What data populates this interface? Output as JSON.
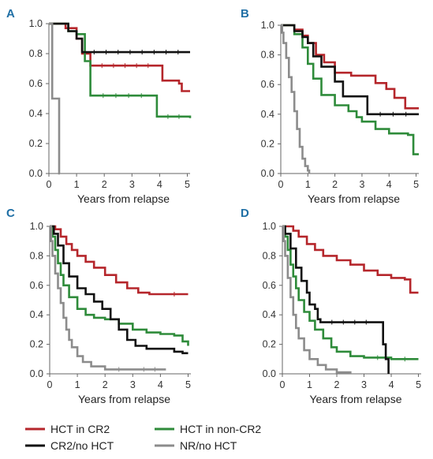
{
  "legend": [
    {
      "label": "HCT in CR2",
      "color": "#b5262b"
    },
    {
      "label": "HCT in non-CR2",
      "color": "#2e8b3a"
    },
    {
      "label": "CR2/no HCT",
      "color": "#111111"
    },
    {
      "label": "NR/no HCT",
      "color": "#8c8c8c"
    }
  ],
  "panel_letter_color": "#1f6fa5",
  "chart_data": [
    {
      "type": "line",
      "panel": "A",
      "xlabel": "Years from relapse",
      "ylabel": "",
      "xlim": [
        0,
        5.1
      ],
      "ylim": [
        0,
        1.0
      ],
      "xticks": [
        "0",
        "1",
        "2",
        "3",
        "4",
        "5"
      ],
      "yticks": [
        "0.0",
        "0.2",
        "0.4",
        "0.6",
        "0.8",
        "1.0"
      ],
      "series": [
        {
          "name": "HCT in CR2",
          "points": [
            [
              0,
              1.0
            ],
            [
              0.5,
              1.0
            ],
            [
              0.6,
              0.97
            ],
            [
              1.0,
              0.9
            ],
            [
              1.2,
              0.8
            ],
            [
              1.5,
              0.72
            ],
            [
              4.0,
              0.72
            ],
            [
              4.1,
              0.62
            ],
            [
              4.7,
              0.6
            ],
            [
              4.8,
              0.55
            ],
            [
              5.1,
              0.55
            ]
          ]
        },
        {
          "name": "HCT in non-CR2",
          "points": [
            [
              0,
              1.0
            ],
            [
              0.6,
              1.0
            ],
            [
              0.7,
              0.95
            ],
            [
              1.0,
              0.93
            ],
            [
              1.3,
              0.75
            ],
            [
              1.5,
              0.52
            ],
            [
              3.8,
              0.52
            ],
            [
              3.9,
              0.38
            ],
            [
              5.1,
              0.37
            ]
          ]
        },
        {
          "name": "CR2/no HCT",
          "points": [
            [
              0,
              1.0
            ],
            [
              0.6,
              1.0
            ],
            [
              0.7,
              0.95
            ],
            [
              1.0,
              0.9
            ],
            [
              1.2,
              0.81
            ],
            [
              5.1,
              0.81
            ]
          ]
        },
        {
          "name": "NR/no HCT",
          "points": [
            [
              0,
              1.0
            ],
            [
              0.1,
              1.0
            ],
            [
              0.12,
              0.5
            ],
            [
              0.35,
              0.5
            ],
            [
              0.37,
              0.0
            ],
            [
              0.4,
              0.0
            ]
          ]
        }
      ]
    },
    {
      "type": "line",
      "panel": "B",
      "xlabel": "Years from relapse",
      "ylabel": "",
      "xlim": [
        0,
        5.1
      ],
      "ylim": [
        0,
        1.0
      ],
      "xticks": [
        "0",
        "1",
        "2",
        "3",
        "4",
        "5"
      ],
      "yticks": [
        "0.0",
        "0.2",
        "0.4",
        "0.6",
        "0.8",
        "1.0"
      ],
      "series": [
        {
          "name": "HCT in CR2",
          "points": [
            [
              0,
              1.0
            ],
            [
              0.4,
              1.0
            ],
            [
              0.5,
              0.97
            ],
            [
              0.8,
              0.93
            ],
            [
              1.0,
              0.88
            ],
            [
              1.3,
              0.8
            ],
            [
              1.6,
              0.75
            ],
            [
              2.0,
              0.68
            ],
            [
              2.4,
              0.68
            ],
            [
              2.6,
              0.66
            ],
            [
              3.2,
              0.66
            ],
            [
              3.5,
              0.61
            ],
            [
              3.9,
              0.57
            ],
            [
              4.2,
              0.51
            ],
            [
              4.6,
              0.44
            ],
            [
              5.1,
              0.44
            ]
          ]
        },
        {
          "name": "HCT in non-CR2",
          "points": [
            [
              0,
              1.0
            ],
            [
              0.3,
              1.0
            ],
            [
              0.5,
              0.94
            ],
            [
              0.8,
              0.85
            ],
            [
              1.0,
              0.74
            ],
            [
              1.2,
              0.64
            ],
            [
              1.5,
              0.53
            ],
            [
              2.0,
              0.46
            ],
            [
              2.5,
              0.42
            ],
            [
              2.8,
              0.38
            ],
            [
              3.0,
              0.35
            ],
            [
              3.5,
              0.3
            ],
            [
              4.0,
              0.27
            ],
            [
              4.7,
              0.26
            ],
            [
              4.9,
              0.13
            ],
            [
              5.1,
              0.13
            ]
          ]
        },
        {
          "name": "CR2/no HCT",
          "points": [
            [
              0,
              1.0
            ],
            [
              0.3,
              1.0
            ],
            [
              0.5,
              0.96
            ],
            [
              0.8,
              0.92
            ],
            [
              1.0,
              0.88
            ],
            [
              1.2,
              0.79
            ],
            [
              1.5,
              0.72
            ],
            [
              2.0,
              0.62
            ],
            [
              2.3,
              0.52
            ],
            [
              3.0,
              0.52
            ],
            [
              3.2,
              0.4
            ],
            [
              5.1,
              0.4
            ]
          ]
        },
        {
          "name": "NR/no HCT",
          "points": [
            [
              0,
              1.0
            ],
            [
              0.05,
              0.95
            ],
            [
              0.1,
              0.88
            ],
            [
              0.2,
              0.78
            ],
            [
              0.3,
              0.65
            ],
            [
              0.4,
              0.55
            ],
            [
              0.5,
              0.42
            ],
            [
              0.6,
              0.3
            ],
            [
              0.7,
              0.18
            ],
            [
              0.8,
              0.1
            ],
            [
              0.9,
              0.05
            ],
            [
              1.0,
              0.02
            ],
            [
              1.05,
              0.0
            ]
          ]
        }
      ]
    },
    {
      "type": "line",
      "panel": "C",
      "xlabel": "Years from relapse",
      "ylabel": "",
      "xlim": [
        0,
        5.1
      ],
      "ylim": [
        0,
        1.0
      ],
      "xticks": [
        "0",
        "1",
        "2",
        "3",
        "4",
        "5"
      ],
      "yticks": [
        "0.0",
        "0.2",
        "0.4",
        "0.6",
        "0.8",
        "1.0"
      ],
      "series": [
        {
          "name": "HCT in CR2",
          "points": [
            [
              0,
              1.0
            ],
            [
              0.2,
              0.98
            ],
            [
              0.4,
              0.93
            ],
            [
              0.6,
              0.88
            ],
            [
              0.8,
              0.84
            ],
            [
              1.0,
              0.8
            ],
            [
              1.3,
              0.76
            ],
            [
              1.6,
              0.72
            ],
            [
              2.0,
              0.67
            ],
            [
              2.4,
              0.62
            ],
            [
              2.8,
              0.58
            ],
            [
              3.2,
              0.55
            ],
            [
              3.6,
              0.54
            ],
            [
              4.0,
              0.54
            ],
            [
              5.0,
              0.54
            ]
          ]
        },
        {
          "name": "HCT in non-CR2",
          "points": [
            [
              0,
              1.0
            ],
            [
              0.1,
              0.93
            ],
            [
              0.2,
              0.84
            ],
            [
              0.3,
              0.75
            ],
            [
              0.4,
              0.67
            ],
            [
              0.5,
              0.6
            ],
            [
              0.7,
              0.52
            ],
            [
              1.0,
              0.44
            ],
            [
              1.3,
              0.4
            ],
            [
              1.6,
              0.38
            ],
            [
              2.0,
              0.37
            ],
            [
              2.5,
              0.34
            ],
            [
              3.0,
              0.3
            ],
            [
              3.5,
              0.28
            ],
            [
              4.0,
              0.27
            ],
            [
              4.5,
              0.26
            ],
            [
              4.8,
              0.22
            ],
            [
              5.0,
              0.19
            ]
          ]
        },
        {
          "name": "CR2/no HCT",
          "points": [
            [
              0,
              1.0
            ],
            [
              0.15,
              0.95
            ],
            [
              0.3,
              0.87
            ],
            [
              0.5,
              0.75
            ],
            [
              0.7,
              0.66
            ],
            [
              1.0,
              0.58
            ],
            [
              1.3,
              0.54
            ],
            [
              1.6,
              0.49
            ],
            [
              1.9,
              0.44
            ],
            [
              2.2,
              0.37
            ],
            [
              2.5,
              0.3
            ],
            [
              2.8,
              0.23
            ],
            [
              3.1,
              0.19
            ],
            [
              3.5,
              0.17
            ],
            [
              4.0,
              0.17
            ],
            [
              4.5,
              0.15
            ],
            [
              4.8,
              0.14
            ],
            [
              5.0,
              0.14
            ]
          ]
        },
        {
          "name": "NR/no HCT",
          "points": [
            [
              0,
              1.0
            ],
            [
              0.05,
              0.9
            ],
            [
              0.1,
              0.8
            ],
            [
              0.2,
              0.68
            ],
            [
              0.3,
              0.58
            ],
            [
              0.4,
              0.48
            ],
            [
              0.5,
              0.38
            ],
            [
              0.6,
              0.3
            ],
            [
              0.7,
              0.23
            ],
            [
              0.8,
              0.18
            ],
            [
              1.0,
              0.12
            ],
            [
              1.2,
              0.08
            ],
            [
              1.5,
              0.05
            ],
            [
              2.0,
              0.03
            ],
            [
              3.0,
              0.03
            ],
            [
              4.2,
              0.03
            ]
          ]
        }
      ]
    },
    {
      "type": "line",
      "panel": "D",
      "xlabel": "Years from relapse",
      "ylabel": "",
      "xlim": [
        0,
        5.1
      ],
      "ylim": [
        0,
        1.0
      ],
      "xticks": [
        "0",
        "1",
        "2",
        "3",
        "4",
        "5"
      ],
      "yticks": [
        "0.0",
        "0.2",
        "0.4",
        "0.6",
        "0.8",
        "1.0"
      ],
      "series": [
        {
          "name": "HCT in CR2",
          "points": [
            [
              0,
              1.0
            ],
            [
              0.2,
              1.0
            ],
            [
              0.4,
              0.97
            ],
            [
              0.6,
              0.93
            ],
            [
              0.9,
              0.88
            ],
            [
              1.2,
              0.84
            ],
            [
              1.5,
              0.8
            ],
            [
              2.0,
              0.77
            ],
            [
              2.5,
              0.74
            ],
            [
              3.0,
              0.7
            ],
            [
              3.5,
              0.67
            ],
            [
              4.0,
              0.65
            ],
            [
              4.5,
              0.64
            ],
            [
              4.7,
              0.55
            ],
            [
              5.0,
              0.55
            ]
          ]
        },
        {
          "name": "HCT in non-CR2",
          "points": [
            [
              0,
              1.0
            ],
            [
              0.1,
              0.93
            ],
            [
              0.2,
              0.84
            ],
            [
              0.3,
              0.74
            ],
            [
              0.4,
              0.66
            ],
            [
              0.5,
              0.58
            ],
            [
              0.6,
              0.5
            ],
            [
              0.8,
              0.42
            ],
            [
              1.0,
              0.36
            ],
            [
              1.2,
              0.3
            ],
            [
              1.5,
              0.24
            ],
            [
              1.8,
              0.18
            ],
            [
              2.0,
              0.15
            ],
            [
              2.5,
              0.12
            ],
            [
              3.0,
              0.11
            ],
            [
              4.0,
              0.1
            ],
            [
              5.0,
              0.1
            ]
          ]
        },
        {
          "name": "CR2/no HCT",
          "points": [
            [
              0,
              1.0
            ],
            [
              0.1,
              0.95
            ],
            [
              0.3,
              0.85
            ],
            [
              0.5,
              0.72
            ],
            [
              0.7,
              0.63
            ],
            [
              0.9,
              0.55
            ],
            [
              1.0,
              0.47
            ],
            [
              1.2,
              0.44
            ],
            [
              1.3,
              0.37
            ],
            [
              1.4,
              0.35
            ],
            [
              3.5,
              0.35
            ],
            [
              3.7,
              0.2
            ],
            [
              3.8,
              0.1
            ],
            [
              3.9,
              0.0
            ]
          ]
        },
        {
          "name": "NR/no HCT",
          "points": [
            [
              0,
              1.0
            ],
            [
              0.05,
              0.9
            ],
            [
              0.1,
              0.8
            ],
            [
              0.2,
              0.65
            ],
            [
              0.3,
              0.52
            ],
            [
              0.4,
              0.4
            ],
            [
              0.5,
              0.31
            ],
            [
              0.6,
              0.24
            ],
            [
              0.8,
              0.16
            ],
            [
              1.0,
              0.1
            ],
            [
              1.3,
              0.06
            ],
            [
              1.6,
              0.03
            ],
            [
              2.0,
              0.01
            ],
            [
              2.5,
              0.0
            ]
          ]
        }
      ]
    }
  ]
}
